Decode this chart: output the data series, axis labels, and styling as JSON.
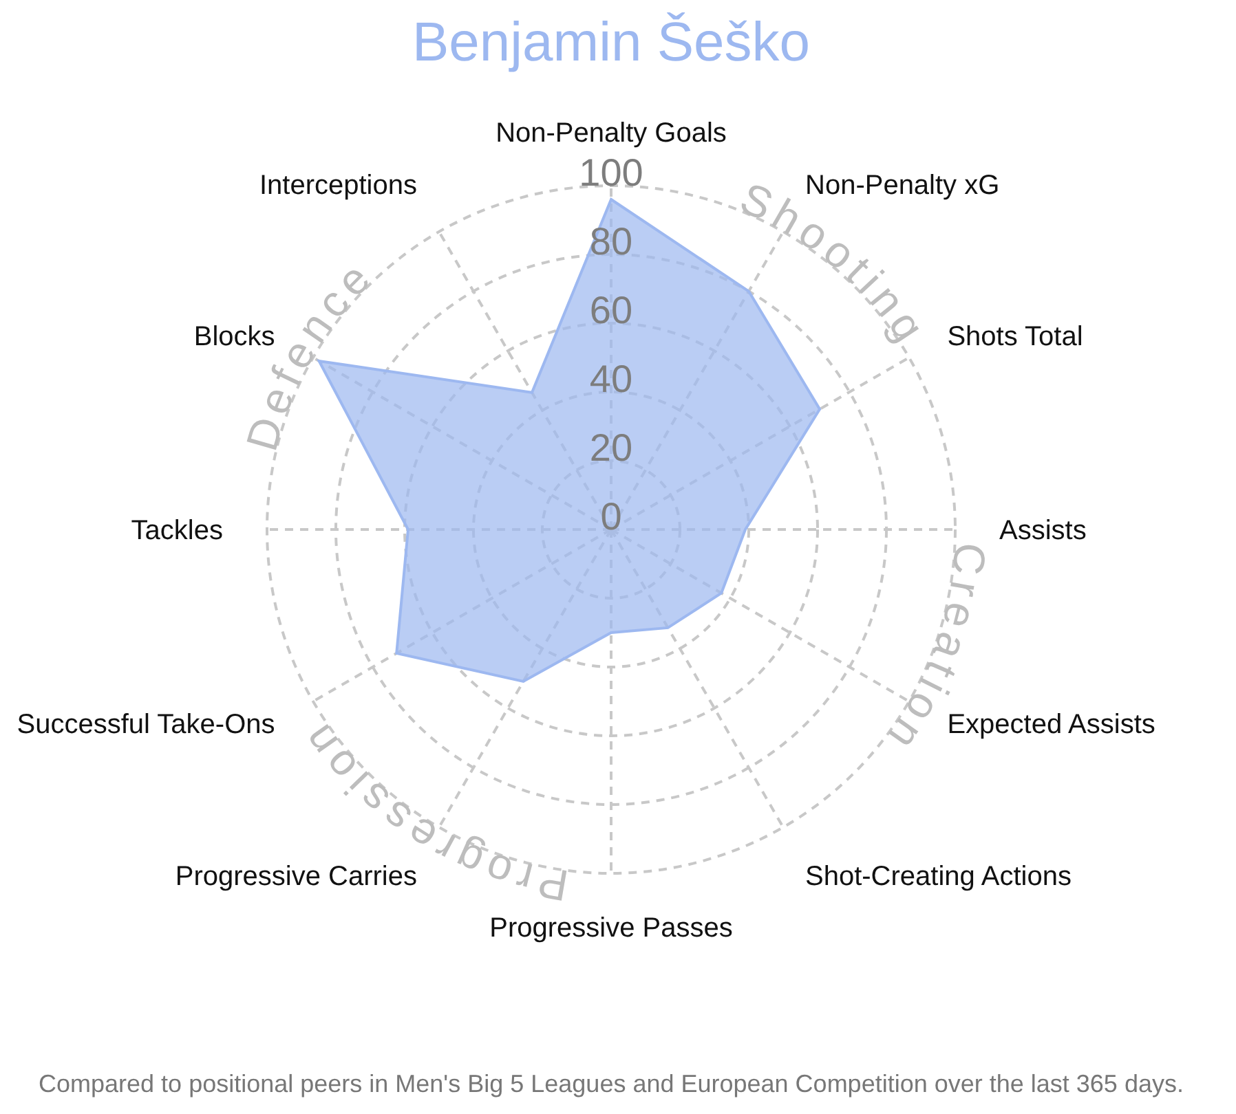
{
  "chart_data": {
    "type": "radar",
    "title": "Benjamin Šeško",
    "categories": [
      "Non-Penalty Goals",
      "Non-Penalty xG",
      "Shots Total",
      "Assists",
      "Expected Assists",
      "Shot-Creating Actions",
      "Progressive Passes",
      "Progressive Carries",
      "Successful Take-Ons",
      "Tackles",
      "Blocks",
      "Interceptions"
    ],
    "series": [
      {
        "color": "#9db8f0",
        "values": [
          96,
          80,
          70,
          39,
          37,
          33,
          30,
          51,
          72,
          59,
          98,
          46
        ]
      }
    ],
    "ylim": [
      0,
      100
    ],
    "yticks": [
      0,
      20,
      40,
      60,
      80,
      100
    ],
    "grid": true,
    "legend": false,
    "annotations": [
      "Shooting",
      "Creation",
      "Progression",
      "Defence",
      "Compared to positional peers in Men's Big 5 Leagues and European Competition over the last 365 days."
    ]
  }
}
